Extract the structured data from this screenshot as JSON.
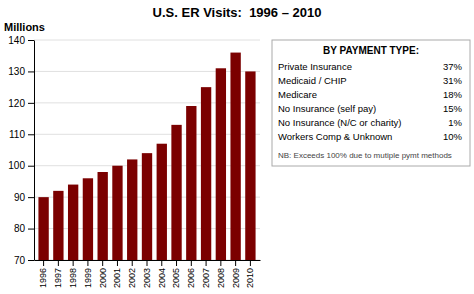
{
  "chart_data": {
    "type": "bar",
    "title": "U.S. ER Visits:  1996 – 2010",
    "ylabel": "Millions",
    "categories": [
      "1996",
      "1997",
      "1998",
      "1999",
      "2000",
      "2001",
      "2002",
      "2003",
      "2004",
      "2005",
      "2006",
      "2007",
      "2008",
      "2009",
      "2010"
    ],
    "values": [
      90,
      92,
      94,
      96,
      98,
      100,
      102,
      104,
      107,
      113,
      119,
      125,
      131,
      136,
      130
    ],
    "color": "#7B0000",
    "ylim": [
      70,
      140
    ],
    "yticks": [
      70,
      80,
      90,
      100,
      110,
      120,
      130,
      140
    ],
    "grid": true,
    "annotations": {
      "title": "BY PAYMENT TYPE:",
      "categories": [
        "Private Insurance",
        "Medicaid / CHIP",
        "Medicare",
        "No Insurance (self pay)",
        "No Insurance (N/C or charity)",
        "Workers Comp & Unknown"
      ],
      "values": [
        37,
        31,
        18,
        15,
        1,
        10
      ],
      "value_labels": [
        "37%",
        "31%",
        "18%",
        "15%",
        "1%",
        "10%"
      ],
      "note": "NB: Exceeds 100% due to mutiple pymt methods"
    }
  }
}
